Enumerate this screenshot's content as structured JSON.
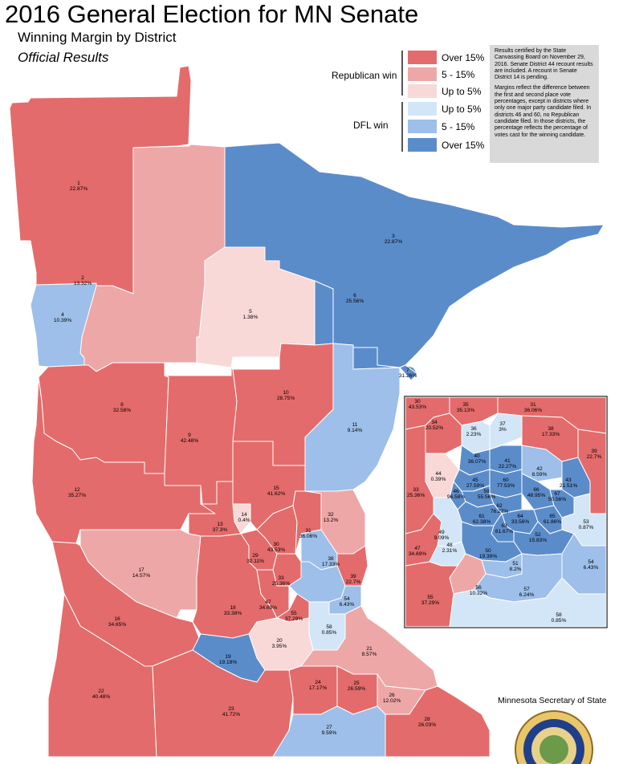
{
  "title": "2016 General Election for MN Senate",
  "subtitle": "Winning Margin by District",
  "subtitle2": "Official Results",
  "colors": {
    "rep_over15": "#e46b6b",
    "rep_5to15": "#eea7a7",
    "rep_upto5": "#f9d8d8",
    "dfl_upto5": "#d2e6f7",
    "dfl_5to15": "#9dbfe9",
    "dfl_over15": "#5b8cca"
  },
  "legend": {
    "republican_label": "Republican win",
    "dfl_label": "DFL win",
    "items": [
      {
        "label": "Over 15%",
        "color": "#e46b6b"
      },
      {
        "label": "5 - 15%",
        "color": "#eea7a7"
      },
      {
        "label": "Up to 5%",
        "color": "#f9d8d8"
      },
      {
        "label": "Up to 5%",
        "color": "#d2e6f7"
      },
      {
        "label": "5 - 15%",
        "color": "#9dbfe9"
      },
      {
        "label": "Over 15%",
        "color": "#5b8cca"
      }
    ]
  },
  "note": {
    "p1": "Results certified by the State Canvassing Board on November 29, 2016. Senate District 44 recount results are included. A recount in Senate District 14 is pending.",
    "p2": "Margins reflect the difference between the first and second place vote percentages, except in districts where only one major party candidate filed. In districts 46 and 60, no Republican candidate filed. In those districts, the percentage reflects the percentage of votes cast for the winning candidate."
  },
  "credit": "Minnesota Secretary of State",
  "districts_main": [
    {
      "id": "1",
      "margin": "22.87%"
    },
    {
      "id": "2",
      "margin": "13.32%"
    },
    {
      "id": "3",
      "margin": "22.87%"
    },
    {
      "id": "4",
      "margin": "10.39%"
    },
    {
      "id": "5",
      "margin": "1.38%"
    },
    {
      "id": "6",
      "margin": "25.56%"
    },
    {
      "id": "7",
      "margin": "31.26%"
    },
    {
      "id": "8",
      "margin": "32.58%"
    },
    {
      "id": "9",
      "margin": "42.48%"
    },
    {
      "id": "10",
      "margin": "28.75%"
    },
    {
      "id": "11",
      "margin": "9.14%"
    },
    {
      "id": "12",
      "margin": "35.27%"
    },
    {
      "id": "13",
      "margin": "37.3%"
    },
    {
      "id": "14",
      "margin": "0.4%"
    },
    {
      "id": "15",
      "margin": "41.62%"
    },
    {
      "id": "16",
      "margin": "34.65%"
    },
    {
      "id": "17",
      "margin": "14.57%"
    },
    {
      "id": "18",
      "margin": "33.38%"
    },
    {
      "id": "19",
      "margin": "19.18%"
    },
    {
      "id": "20",
      "margin": "3.95%"
    },
    {
      "id": "21",
      "margin": "8.57%"
    },
    {
      "id": "22",
      "margin": "40.48%"
    },
    {
      "id": "23",
      "margin": "41.72%"
    },
    {
      "id": "24",
      "margin": "17.17%"
    },
    {
      "id": "25",
      "margin": "26.59%"
    },
    {
      "id": "26",
      "margin": "12.02%"
    },
    {
      "id": "27",
      "margin": "9.59%"
    },
    {
      "id": "28",
      "margin": "26.03%"
    },
    {
      "id": "29",
      "margin": "32.11%"
    },
    {
      "id": "30",
      "margin": "43.53%"
    },
    {
      "id": "31",
      "margin": "36.06%"
    },
    {
      "id": "32",
      "margin": "13.2%"
    },
    {
      "id": "33",
      "margin": "25.36%"
    },
    {
      "id": "38",
      "margin": "17.33%"
    },
    {
      "id": "39",
      "margin": "22.7%"
    },
    {
      "id": "47",
      "margin": "34.69%"
    },
    {
      "id": "54",
      "margin": "6.43%"
    },
    {
      "id": "55",
      "margin": "37.29%"
    },
    {
      "id": "58",
      "margin": "0.85%"
    }
  ],
  "districts_inset": [
    {
      "id": "30",
      "margin": "43.53%"
    },
    {
      "id": "35",
      "margin": "35.13%"
    },
    {
      "id": "31",
      "margin": "36.06%"
    },
    {
      "id": "34",
      "margin": "20.52%"
    },
    {
      "id": "36",
      "margin": "2.23%"
    },
    {
      "id": "37",
      "margin": "3%"
    },
    {
      "id": "38",
      "margin": "17.33%"
    },
    {
      "id": "39",
      "margin": "22.7%"
    },
    {
      "id": "40",
      "margin": "36.07%"
    },
    {
      "id": "41",
      "margin": "22.27%"
    },
    {
      "id": "42",
      "margin": "8.59%"
    },
    {
      "id": "43",
      "margin": "21.51%"
    },
    {
      "id": "44",
      "margin": "0.39%"
    },
    {
      "id": "45",
      "margin": "27.59%"
    },
    {
      "id": "60",
      "margin": "77.53%"
    },
    {
      "id": "46",
      "margin": "96.58%"
    },
    {
      "id": "59",
      "margin": "55.56%"
    },
    {
      "id": "66",
      "margin": "48.95%"
    },
    {
      "id": "67",
      "margin": "50.56%"
    },
    {
      "id": "33",
      "margin": "25.36%"
    },
    {
      "id": "62",
      "margin": "76.27%"
    },
    {
      "id": "61",
      "margin": "62.38%"
    },
    {
      "id": "64",
      "margin": "33.56%"
    },
    {
      "id": "65",
      "margin": "61.86%"
    },
    {
      "id": "63",
      "margin": "61.67%"
    },
    {
      "id": "53",
      "margin": "0.87%"
    },
    {
      "id": "47",
      "margin": "34.69%"
    },
    {
      "id": "49",
      "margin": "9.09%"
    },
    {
      "id": "48",
      "margin": "2.31%"
    },
    {
      "id": "52",
      "margin": "15.83%"
    },
    {
      "id": "50",
      "margin": "19.39%"
    },
    {
      "id": "51",
      "margin": "8.2%"
    },
    {
      "id": "54",
      "margin": "6.43%"
    },
    {
      "id": "56",
      "margin": "10.32%"
    },
    {
      "id": "57",
      "margin": "6.24%"
    },
    {
      "id": "55",
      "margin": "37.29%"
    },
    {
      "id": "58",
      "margin": "0.85%"
    }
  ]
}
